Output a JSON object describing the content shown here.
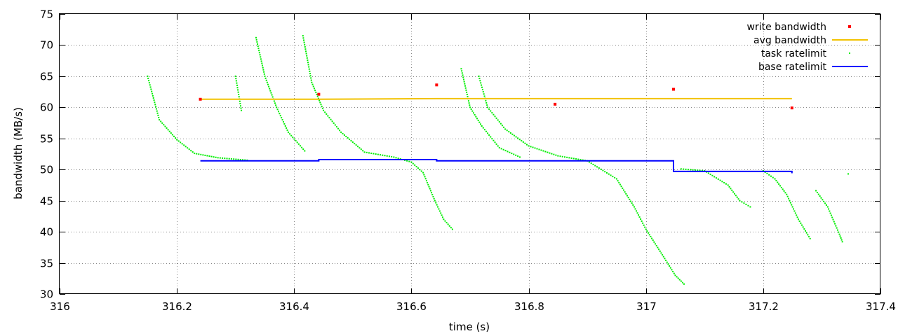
{
  "chart_data": {
    "type": "scatter",
    "xlabel": "time (s)",
    "ylabel": "bandwidth (MB/s)",
    "xlim": [
      316,
      317.4
    ],
    "ylim": [
      30,
      75
    ],
    "xticks": [
      "316",
      "316.2",
      "316.4",
      "316.6",
      "316.8",
      "317",
      "317.2",
      "317.4"
    ],
    "yticks": [
      "30",
      "35",
      "40",
      "45",
      "50",
      "55",
      "60",
      "65",
      "70",
      "75"
    ],
    "grid": "dotted",
    "legend_position": "top-right",
    "series": [
      {
        "name": "write bandwidth",
        "kind": "points",
        "color": "#ff0000",
        "points": [
          [
            316.24,
            61.3
          ],
          [
            316.442,
            62.1
          ],
          [
            316.643,
            63.6
          ],
          [
            316.845,
            60.5
          ],
          [
            317.047,
            62.9
          ],
          [
            317.249,
            59.9
          ]
        ]
      },
      {
        "name": "avg bandwidth",
        "kind": "line",
        "color": "#f2c200",
        "points": [
          [
            316.24,
            61.3
          ],
          [
            316.442,
            61.3
          ],
          [
            316.643,
            61.4
          ],
          [
            316.845,
            61.4
          ],
          [
            317.047,
            61.4
          ],
          [
            317.249,
            61.4
          ]
        ]
      },
      {
        "name": "task ratelimit",
        "kind": "dots",
        "color": "#00ee00",
        "segments": [
          [
            [
              316.15,
              65.0
            ],
            [
              316.17,
              58.0
            ],
            [
              316.2,
              54.8
            ],
            [
              316.23,
              52.6
            ],
            [
              316.27,
              51.9
            ],
            [
              316.32,
              51.5
            ]
          ],
          [
            [
              316.3,
              65.0
            ],
            [
              316.31,
              59.5
            ]
          ],
          [
            [
              316.335,
              71.2
            ],
            [
              316.35,
              65.0
            ],
            [
              316.37,
              60.0
            ],
            [
              316.39,
              56.0
            ],
            [
              316.418,
              53.0
            ]
          ],
          [
            [
              316.415,
              71.5
            ],
            [
              316.43,
              64.0
            ],
            [
              316.45,
              59.5
            ],
            [
              316.48,
              56.0
            ],
            [
              316.52,
              52.8
            ],
            [
              316.57,
              52.0
            ],
            [
              316.6,
              51.2
            ],
            [
              316.62,
              49.5
            ],
            [
              316.64,
              45.0
            ],
            [
              316.655,
              42.0
            ],
            [
              316.67,
              40.4
            ]
          ],
          [
            [
              316.685,
              66.2
            ],
            [
              316.7,
              60.0
            ],
            [
              316.72,
              57.0
            ],
            [
              316.75,
              53.5
            ],
            [
              316.785,
              52.0
            ]
          ],
          [
            [
              316.715,
              65.0
            ],
            [
              316.73,
              60.0
            ],
            [
              316.76,
              56.5
            ],
            [
              316.8,
              53.8
            ],
            [
              316.85,
              52.2
            ],
            [
              316.9,
              51.4
            ],
            [
              316.95,
              48.5
            ],
            [
              316.98,
              44.0
            ],
            [
              317.0,
              40.4
            ],
            [
              317.03,
              36.0
            ],
            [
              317.05,
              33.0
            ],
            [
              317.065,
              31.6
            ]
          ],
          [
            [
              317.06,
              50.1
            ],
            [
              317.1,
              49.8
            ],
            [
              317.14,
              47.5
            ],
            [
              317.16,
              45.0
            ],
            [
              317.178,
              44.0
            ]
          ],
          [
            [
              317.2,
              49.8
            ],
            [
              317.22,
              48.5
            ],
            [
              317.24,
              46.0
            ],
            [
              317.26,
              42.0
            ],
            [
              317.28,
              38.9
            ]
          ],
          [
            [
              317.29,
              46.6
            ],
            [
              317.31,
              44.0
            ],
            [
              317.33,
              39.6
            ],
            [
              317.335,
              38.4
            ]
          ],
          [
            [
              317.345,
              49.3
            ]
          ]
        ]
      },
      {
        "name": "base ratelimit",
        "kind": "step",
        "color": "#0000ff",
        "points": [
          [
            316.24,
            51.4
          ],
          [
            316.442,
            51.4
          ],
          [
            316.442,
            51.6
          ],
          [
            316.643,
            51.6
          ],
          [
            316.643,
            51.4
          ],
          [
            317.047,
            51.4
          ],
          [
            317.047,
            49.7
          ],
          [
            317.249,
            49.7
          ],
          [
            317.249,
            49.4
          ]
        ]
      }
    ]
  }
}
